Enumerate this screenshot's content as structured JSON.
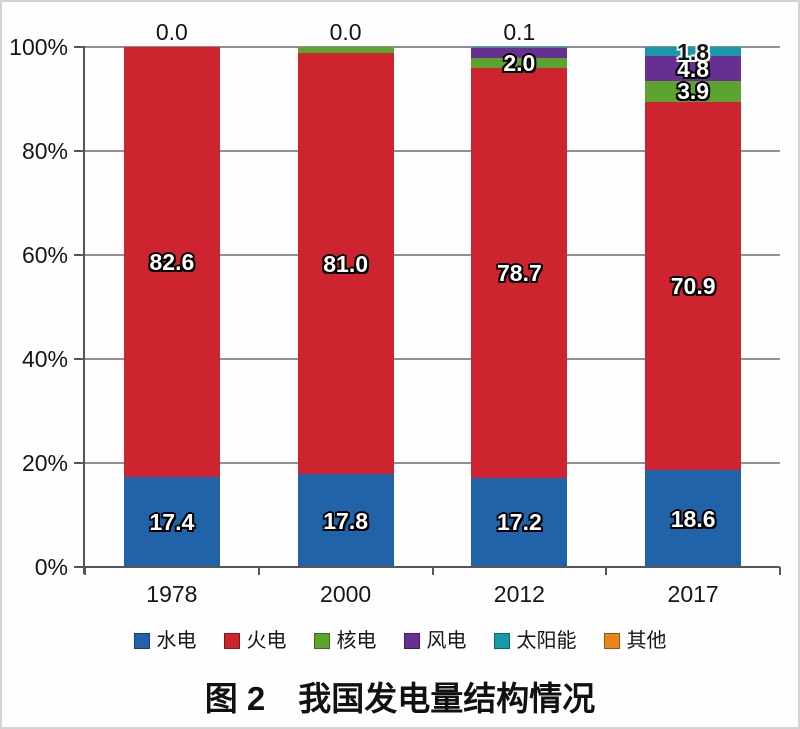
{
  "chart_data": {
    "type": "bar",
    "variant": "stacked-column-percent",
    "title": "图 2　我国发电量结构情况",
    "categories": [
      "1978",
      "2000",
      "2012",
      "2017"
    ],
    "series": [
      {
        "name": "水电",
        "color": "#2063A8",
        "values": [
          17.4,
          17.8,
          17.2,
          18.6
        ]
      },
      {
        "name": "火电",
        "color": "#CE242F",
        "values": [
          82.6,
          81.0,
          78.7,
          70.9
        ]
      },
      {
        "name": "核电",
        "color": "#5CA42F",
        "values": [
          0.0,
          1.2,
          2.0,
          3.9
        ]
      },
      {
        "name": "风电",
        "color": "#682F93",
        "values": [
          0.0,
          0.0,
          2.0,
          4.8
        ]
      },
      {
        "name": "太阳能",
        "color": "#1899A9",
        "values": [
          0.0,
          0.0,
          0.1,
          1.8
        ]
      },
      {
        "name": "其他",
        "color": "#E8831D",
        "values": [
          0.0,
          0.0,
          0.0,
          0.0
        ]
      }
    ],
    "stack_order_bottom_to_top": [
      "水电",
      "火电",
      "核电",
      "风电",
      "太阳能",
      "其他"
    ],
    "y_axis": {
      "min": 0,
      "max": 100,
      "grid": true,
      "ticks": [
        "0%",
        "20%",
        "40%",
        "60%",
        "80%",
        "100%"
      ]
    },
    "legend_position": "bottom",
    "data_labels": [
      {
        "category": "1978",
        "labels": [
          {
            "text": "17.4",
            "series": "水电",
            "placement": "inside",
            "style": "light"
          },
          {
            "text": "82.6",
            "series": "火电",
            "placement": "inside",
            "style": "light"
          },
          {
            "text": "0.0",
            "series": null,
            "placement": "above",
            "style": "dark"
          }
        ]
      },
      {
        "category": "2000",
        "labels": [
          {
            "text": "17.8",
            "series": "水电",
            "placement": "inside",
            "style": "light"
          },
          {
            "text": "81.0",
            "series": "火电",
            "placement": "inside",
            "style": "light"
          },
          {
            "text": "0.0",
            "series": null,
            "placement": "above",
            "style": "dark"
          }
        ]
      },
      {
        "category": "2012",
        "labels": [
          {
            "text": "17.2",
            "series": "水电",
            "placement": "inside",
            "style": "light"
          },
          {
            "text": "78.7",
            "series": "火电",
            "placement": "inside",
            "style": "light"
          },
          {
            "text": "2.0",
            "series": "核电",
            "placement": "inside",
            "style": "light"
          },
          {
            "text": "0.1",
            "series": null,
            "placement": "above",
            "style": "dark"
          }
        ]
      },
      {
        "category": "2017",
        "labels": [
          {
            "text": "18.6",
            "series": "水电",
            "placement": "inside",
            "style": "light"
          },
          {
            "text": "70.9",
            "series": "火电",
            "placement": "inside",
            "style": "light"
          },
          {
            "text": "3.9",
            "series": "核电",
            "placement": "inside",
            "style": "light"
          },
          {
            "text": "4.8",
            "series": "风电",
            "placement": "inside",
            "style": "light"
          },
          {
            "text": "1.8",
            "series": "太阳能",
            "placement": "inside",
            "style": "dark-halo"
          }
        ]
      }
    ]
  }
}
